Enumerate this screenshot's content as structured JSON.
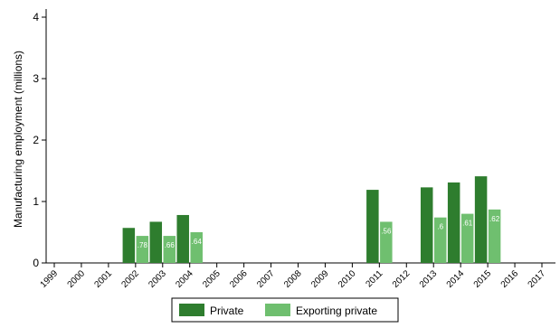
{
  "chart_data": {
    "type": "bar",
    "ylabel": "Manufacturing employment (millions)",
    "xlabel": "",
    "title": "",
    "ylim": [
      0,
      4
    ],
    "yticks": [
      "0",
      "1",
      "2",
      "3",
      "4"
    ],
    "grid": false,
    "legend_position": "bottom",
    "categories": [
      "1999",
      "2000",
      "2001",
      "2002",
      "2003",
      "2004",
      "2005",
      "2006",
      "2007",
      "2008",
      "2009",
      "2010",
      "2011",
      "2012",
      "2013",
      "2014",
      "2015",
      "2016",
      "2017"
    ],
    "series": [
      {
        "name": "Private",
        "color": "#2e7d2e",
        "values": [
          null,
          null,
          null,
          0.57,
          0.67,
          0.78,
          null,
          null,
          null,
          null,
          null,
          null,
          1.19,
          null,
          1.23,
          1.31,
          1.41,
          null,
          null
        ]
      },
      {
        "name": "Exporting private",
        "color": "#6fbf6f",
        "values": [
          null,
          null,
          null,
          0.44,
          0.44,
          0.5,
          null,
          null,
          null,
          null,
          null,
          null,
          0.67,
          null,
          0.74,
          0.8,
          0.87,
          null,
          null
        ],
        "labels": [
          null,
          null,
          null,
          ".78",
          ".66",
          ".64",
          null,
          null,
          null,
          null,
          null,
          null,
          ".56",
          null,
          ".6",
          ".61",
          ".62",
          null,
          null
        ]
      }
    ]
  }
}
